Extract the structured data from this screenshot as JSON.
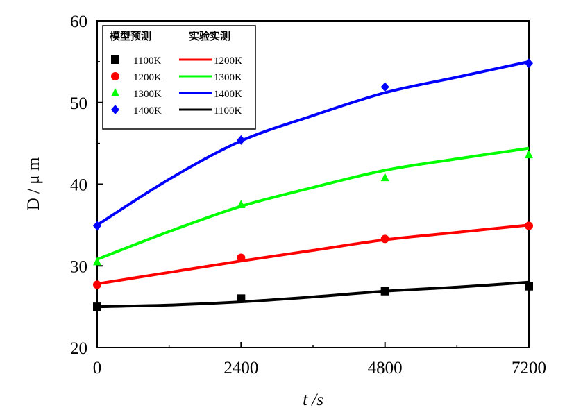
{
  "chart_data": {
    "type": "line",
    "xlabel": "t /s",
    "ylabel": "D / μ m",
    "xlim": [
      0,
      7200
    ],
    "ylim": [
      20,
      60
    ],
    "xticks": [
      0,
      2400,
      4800,
      7200
    ],
    "yticks": [
      20,
      30,
      40,
      50,
      60
    ],
    "grid": false,
    "legend_position": "top-left",
    "legend": {
      "col1_title": "模型预测",
      "col2_title": "实验实测"
    },
    "colors": {
      "1100K": "#000000",
      "1200K": "#ff0000",
      "1300K": "#00ff00",
      "1400K": "#0000ff"
    },
    "model_series": [
      {
        "name": "1100K",
        "marker": "square",
        "x": [
          0,
          2400,
          4800,
          7200
        ],
        "y": [
          25.0,
          26.0,
          26.9,
          27.5
        ]
      },
      {
        "name": "1200K",
        "marker": "circle",
        "x": [
          0,
          2400,
          4800,
          7200
        ],
        "y": [
          27.7,
          31.0,
          33.3,
          34.9
        ]
      },
      {
        "name": "1300K",
        "marker": "triangle",
        "x": [
          0,
          2400,
          4800,
          7200
        ],
        "y": [
          30.5,
          37.5,
          40.8,
          43.6
        ]
      },
      {
        "name": "1400K",
        "marker": "diamond",
        "x": [
          0,
          2400,
          4800,
          7200
        ],
        "y": [
          34.9,
          45.4,
          51.9,
          54.8
        ]
      }
    ],
    "experiment_series": [
      {
        "name": "1200K",
        "x": [
          0,
          1200,
          2400,
          3600,
          4800,
          6000,
          7200
        ],
        "y": [
          27.8,
          29.2,
          30.6,
          31.9,
          33.2,
          34.1,
          35.0
        ]
      },
      {
        "name": "1300K",
        "x": [
          0,
          1200,
          2400,
          3600,
          4800,
          6000,
          7200
        ],
        "y": [
          30.8,
          34.2,
          37.3,
          39.6,
          41.7,
          43.1,
          44.4
        ]
      },
      {
        "name": "1400K",
        "x": [
          0,
          1200,
          2400,
          3600,
          4800,
          6000,
          7200
        ],
        "y": [
          35.0,
          40.6,
          45.3,
          48.4,
          51.2,
          53.1,
          55.0
        ]
      },
      {
        "name": "1100K",
        "x": [
          0,
          1200,
          2400,
          3600,
          4800,
          6000,
          7200
        ],
        "y": [
          25.0,
          25.2,
          25.6,
          26.2,
          26.9,
          27.4,
          28.0
        ]
      }
    ]
  }
}
